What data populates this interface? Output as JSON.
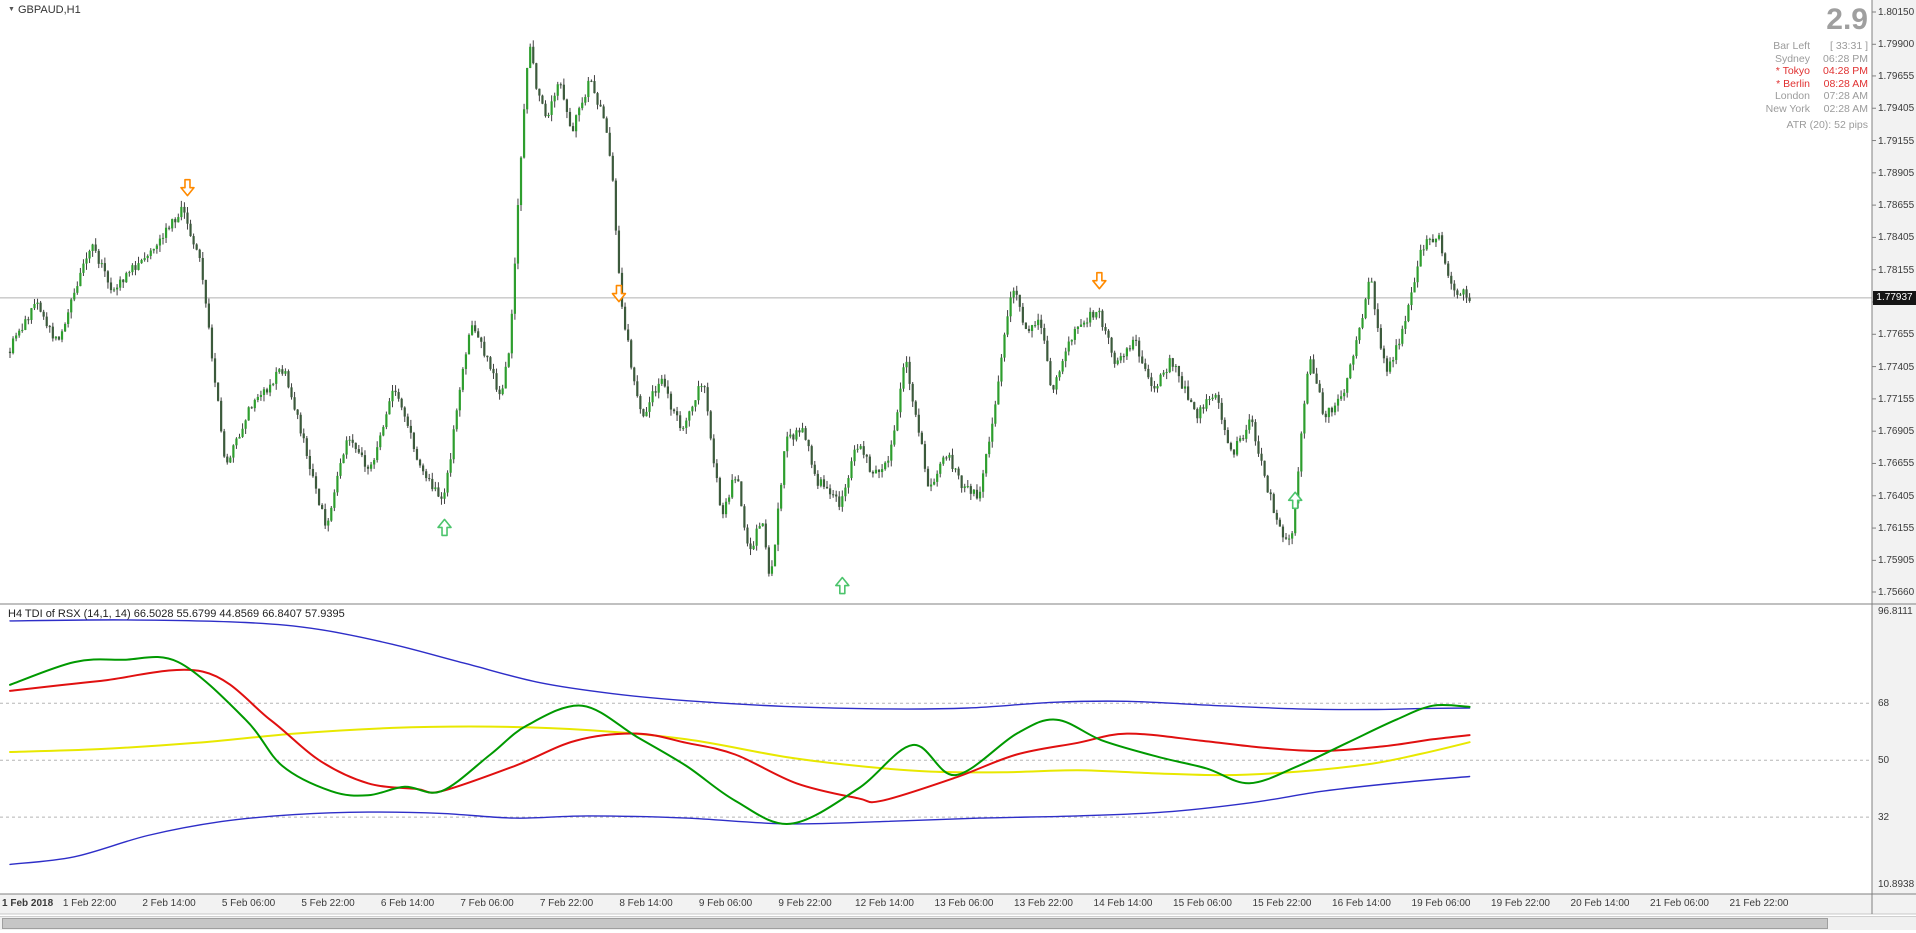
{
  "chart_header": {
    "symbol_label": "GBPAUD,H1"
  },
  "info_panel": {
    "big_value": "2.9",
    "rows": [
      {
        "label": "Bar Left",
        "value": "[ 33:31 ]",
        "tone": "gray"
      },
      {
        "label": "Sydney",
        "value": "06:28 PM",
        "tone": "gray"
      },
      {
        "label": "* Tokyo",
        "value": "04:28 PM",
        "tone": "red"
      },
      {
        "label": "* Berlin",
        "value": "08:28 AM",
        "tone": "red"
      },
      {
        "label": "London",
        "value": "07:28 AM",
        "tone": "gray"
      },
      {
        "label": "New York",
        "value": "02:28 AM",
        "tone": "gray"
      }
    ],
    "atr_label": "ATR (20): 52 pips"
  },
  "price_axis": {
    "labels": [
      "1.80150",
      "1.79900",
      "1.79655",
      "1.79405",
      "1.79155",
      "1.78905",
      "1.78655",
      "1.78405",
      "1.78155",
      "1.77905",
      "1.77655",
      "1.77405",
      "1.77155",
      "1.76905",
      "1.76655",
      "1.76405",
      "1.76155",
      "1.75905",
      "1.75660"
    ],
    "current_price": "1.77937"
  },
  "time_axis": {
    "labels": [
      "1 Feb 2018",
      "1 Feb 22:00",
      "2 Feb 14:00",
      "5 Feb 06:00",
      "5 Feb 22:00",
      "6 Feb 14:00",
      "7 Feb 06:00",
      "7 Feb 22:00",
      "8 Feb 14:00",
      "9 Feb 06:00",
      "9 Feb 22:00",
      "12 Feb 14:00",
      "13 Feb 06:00",
      "13 Feb 22:00",
      "14 Feb 14:00",
      "15 Feb 06:00",
      "15 Feb 22:00",
      "16 Feb 14:00",
      "19 Feb 06:00",
      "19 Feb 22:00",
      "20 Feb 14:00",
      "21 Feb 06:00",
      "21 Feb 22:00"
    ]
  },
  "indicator_panel": {
    "title": "H4 TDI of RSX  (14,1, 14) 66.5028 55.6799 44.8569 66.8407 57.9395",
    "axis": {
      "top": "96.8111",
      "grid": [
        "68",
        "50",
        "32"
      ],
      "bottom": "10.8938"
    }
  },
  "colors": {
    "bull": "#2e9e2e",
    "bear": "#3c5a3c",
    "wick": "#404040",
    "arrow_up": "#4cc46c",
    "arrow_down": "#ff8a00",
    "band_blue": "#2e2ec8",
    "base_yellow": "#e8e800",
    "signal_red": "#e01010",
    "rsx_green": "#009900",
    "grid_dash": "#b5b5b5",
    "separator": "#808080",
    "axis_bg": "#f2f2f2",
    "price_line": "#b0b0b0",
    "badge_bg": "#151515",
    "badge_text": "#ffffff",
    "text_dark": "#3a3a3a",
    "text_gray": "#9b9b9b",
    "text_red": "#e03131",
    "big_value_gray": "#9f9f9f",
    "scroll_track": "#f0f0f0",
    "scroll_thumb": "#c6c6c6",
    "scroll_border": "#9f9f9f"
  },
  "chart_data": {
    "type": "candlestick",
    "symbol": "GBPAUD",
    "timeframe": "H1",
    "bars": 478,
    "price_range": [
      1.7566,
      1.8015
    ],
    "current_price": 1.77937,
    "price_path_anchors": [
      [
        0,
        1.7752
      ],
      [
        9,
        1.779
      ],
      [
        16,
        1.7758
      ],
      [
        27,
        1.7836
      ],
      [
        34,
        1.78
      ],
      [
        45,
        1.7828
      ],
      [
        57,
        1.7862
      ],
      [
        63,
        1.7818
      ],
      [
        71,
        1.7662
      ],
      [
        78,
        1.7705
      ],
      [
        90,
        1.774
      ],
      [
        104,
        1.7614
      ],
      [
        111,
        1.769
      ],
      [
        118,
        1.7658
      ],
      [
        126,
        1.7726
      ],
      [
        134,
        1.7668
      ],
      [
        142,
        1.7632
      ],
      [
        151,
        1.7776
      ],
      [
        157,
        1.7744
      ],
      [
        161,
        1.7716
      ],
      [
        164,
        1.7762
      ],
      [
        167,
        1.7885
      ],
      [
        170,
        1.7992
      ],
      [
        173,
        1.7952
      ],
      [
        176,
        1.793
      ],
      [
        180,
        1.7966
      ],
      [
        184,
        1.7921
      ],
      [
        190,
        1.7962
      ],
      [
        194,
        1.7938
      ],
      [
        197,
        1.79
      ],
      [
        200,
        1.7794
      ],
      [
        204,
        1.7736
      ],
      [
        207,
        1.77
      ],
      [
        213,
        1.773
      ],
      [
        220,
        1.7692
      ],
      [
        227,
        1.773
      ],
      [
        233,
        1.7626
      ],
      [
        238,
        1.766
      ],
      [
        242,
        1.7592
      ],
      [
        246,
        1.7625
      ],
      [
        249,
        1.7572
      ],
      [
        254,
        1.7682
      ],
      [
        260,
        1.7692
      ],
      [
        264,
        1.7652
      ],
      [
        268,
        1.7646
      ],
      [
        272,
        1.7634
      ],
      [
        277,
        1.7682
      ],
      [
        283,
        1.7656
      ],
      [
        288,
        1.7672
      ],
      [
        293,
        1.7746
      ],
      [
        297,
        1.77
      ],
      [
        301,
        1.7642
      ],
      [
        306,
        1.7676
      ],
      [
        312,
        1.7648
      ],
      [
        317,
        1.764
      ],
      [
        322,
        1.7702
      ],
      [
        328,
        1.7806
      ],
      [
        333,
        1.7762
      ],
      [
        337,
        1.7782
      ],
      [
        341,
        1.7718
      ],
      [
        345,
        1.7752
      ],
      [
        350,
        1.7772
      ],
      [
        356,
        1.7786
      ],
      [
        362,
        1.7742
      ],
      [
        368,
        1.7762
      ],
      [
        374,
        1.7722
      ],
      [
        380,
        1.7746
      ],
      [
        388,
        1.7702
      ],
      [
        394,
        1.7722
      ],
      [
        400,
        1.7672
      ],
      [
        406,
        1.77
      ],
      [
        412,
        1.7642
      ],
      [
        417,
        1.7602
      ],
      [
        420,
        1.7618
      ],
      [
        425,
        1.7752
      ],
      [
        430,
        1.7702
      ],
      [
        436,
        1.7718
      ],
      [
        440,
        1.7752
      ],
      [
        445,
        1.781
      ],
      [
        450,
        1.7736
      ],
      [
        455,
        1.7762
      ],
      [
        462,
        1.7832
      ],
      [
        467,
        1.7844
      ],
      [
        472,
        1.7802
      ],
      [
        477,
        1.7794
      ]
    ],
    "signal_arrows": [
      {
        "bar": 58,
        "price": 1.7879,
        "dir": "down"
      },
      {
        "bar": 199,
        "price": 1.7797,
        "dir": "down"
      },
      {
        "bar": 356,
        "price": 1.7807,
        "dir": "down"
      },
      {
        "bar": 142,
        "price": 1.7616,
        "dir": "up"
      },
      {
        "bar": 272,
        "price": 1.7571,
        "dir": "up"
      },
      {
        "bar": 420,
        "price": 1.7637,
        "dir": "up"
      }
    ],
    "indicator": {
      "name": "H4 TDI of RSX (14,1,14)",
      "value_range": [
        10.8938,
        96.8111
      ],
      "grid_levels": [
        68,
        50,
        32
      ],
      "last_values": {
        "upper_band": 66.5028,
        "market_base": 55.6799,
        "lower_band": 44.8569,
        "rsx": 66.8407,
        "signal": 57.9395
      },
      "lines": {
        "upper_band": [
          [
            0,
            94.0
          ],
          [
            37,
            94.3
          ],
          [
            77,
            93.5
          ],
          [
            101,
            91.3
          ],
          [
            125,
            86.6
          ],
          [
            149,
            80.5
          ],
          [
            173,
            74.5
          ],
          [
            197,
            71.0
          ],
          [
            221,
            68.8
          ],
          [
            253,
            67.0
          ],
          [
            285,
            66.2
          ],
          [
            313,
            66.5
          ],
          [
            341,
            68.3
          ],
          [
            365,
            68.6
          ],
          [
            393,
            67.3
          ],
          [
            421,
            66.2
          ],
          [
            445,
            66.0
          ],
          [
            461,
            66.3
          ],
          [
            477,
            66.5
          ]
        ],
        "lower_band": [
          [
            0,
            17.1
          ],
          [
            21,
            19.5
          ],
          [
            45,
            26.2
          ],
          [
            69,
            30.6
          ],
          [
            93,
            32.8
          ],
          [
            117,
            33.6
          ],
          [
            141,
            33.2
          ],
          [
            165,
            31.7
          ],
          [
            189,
            32.4
          ],
          [
            221,
            31.7
          ],
          [
            253,
            29.9
          ],
          [
            285,
            30.6
          ],
          [
            317,
            31.7
          ],
          [
            349,
            32.4
          ],
          [
            377,
            33.6
          ],
          [
            405,
            36.5
          ],
          [
            429,
            40.2
          ],
          [
            453,
            42.8
          ],
          [
            477,
            44.86
          ]
        ],
        "market_base_yellow": [
          [
            0,
            52.6
          ],
          [
            29,
            53.5
          ],
          [
            61,
            55.5
          ],
          [
            93,
            58.4
          ],
          [
            125,
            60.2
          ],
          [
            157,
            60.6
          ],
          [
            189,
            59.5
          ],
          [
            221,
            56.6
          ],
          [
            253,
            51.1
          ],
          [
            277,
            48.2
          ],
          [
            301,
            46.4
          ],
          [
            325,
            46.2
          ],
          [
            349,
            46.8
          ],
          [
            373,
            45.9
          ],
          [
            397,
            45.3
          ],
          [
            421,
            46.4
          ],
          [
            445,
            48.9
          ],
          [
            461,
            52.0
          ],
          [
            477,
            55.68
          ]
        ],
        "signal_red": [
          [
            0,
            71.9
          ],
          [
            29,
            75.0
          ],
          [
            63,
            78.0
          ],
          [
            85,
            62.8
          ],
          [
            101,
            50.0
          ],
          [
            117,
            42.7
          ],
          [
            133,
            40.9
          ],
          [
            141,
            40.2
          ],
          [
            165,
            48.2
          ],
          [
            185,
            56.2
          ],
          [
            205,
            58.4
          ],
          [
            221,
            55.5
          ],
          [
            237,
            51.8
          ],
          [
            257,
            42.7
          ],
          [
            277,
            38.0
          ],
          [
            285,
            37.2
          ],
          [
            309,
            44.5
          ],
          [
            329,
            51.8
          ],
          [
            349,
            55.5
          ],
          [
            365,
            58.4
          ],
          [
            389,
            56.2
          ],
          [
            409,
            54.0
          ],
          [
            429,
            52.9
          ],
          [
            449,
            54.4
          ],
          [
            465,
            56.6
          ],
          [
            477,
            57.94
          ]
        ],
        "rsx_green": [
          [
            0,
            73.8
          ],
          [
            21,
            81.0
          ],
          [
            37,
            81.7
          ],
          [
            55,
            81.0
          ],
          [
            77,
            62.8
          ],
          [
            89,
            48.2
          ],
          [
            105,
            40.2
          ],
          [
            117,
            38.9
          ],
          [
            129,
            41.6
          ],
          [
            141,
            40.2
          ],
          [
            157,
            51.8
          ],
          [
            169,
            61.0
          ],
          [
            187,
            67.2
          ],
          [
            205,
            57.3
          ],
          [
            221,
            48.2
          ],
          [
            237,
            37.2
          ],
          [
            255,
            29.9
          ],
          [
            277,
            40.9
          ],
          [
            295,
            54.8
          ],
          [
            309,
            45.3
          ],
          [
            329,
            58.4
          ],
          [
            342,
            62.8
          ],
          [
            357,
            56.2
          ],
          [
            375,
            51.1
          ],
          [
            391,
            47.4
          ],
          [
            405,
            42.7
          ],
          [
            421,
            48.2
          ],
          [
            437,
            55.5
          ],
          [
            453,
            62.8
          ],
          [
            465,
            67.2
          ],
          [
            477,
            66.84
          ]
        ]
      }
    }
  }
}
